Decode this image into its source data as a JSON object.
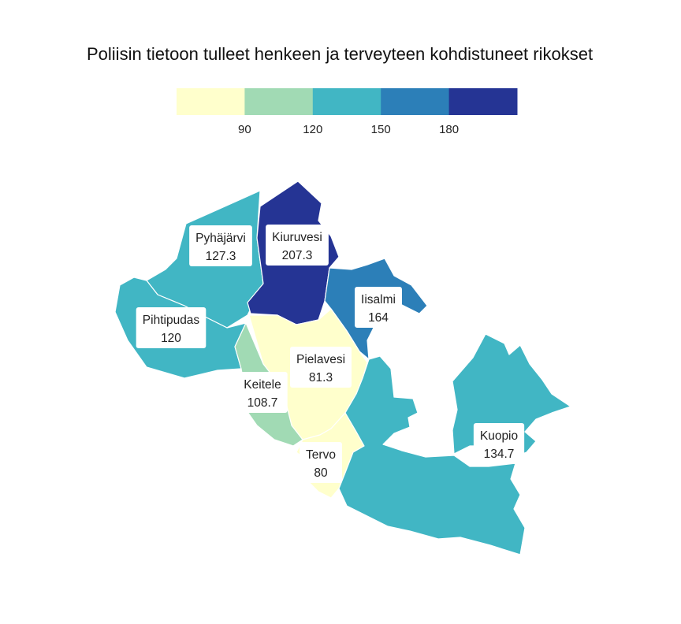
{
  "title": "Poliisin tietoon tulleet henkeen ja terveyteen kohdistuneet rikokset",
  "legend": {
    "breaks": [
      90,
      120,
      150,
      180
    ],
    "tick_labels": [
      "90",
      "120",
      "150",
      "180"
    ],
    "colors": [
      "#ffffcc",
      "#a1dab4",
      "#41b6c4",
      "#2c7fb8",
      "#253494"
    ]
  },
  "chart_data": {
    "type": "choropleth",
    "title": "Poliisin tietoon tulleet henkeen ja terveyteen kohdistuneet rikokset",
    "regions": [
      {
        "name": "Pyhäjärvi",
        "value": 127.3,
        "label": "127.3"
      },
      {
        "name": "Kiuruvesi",
        "value": 207.3,
        "label": "207.3"
      },
      {
        "name": "Iisalmi",
        "value": 164,
        "label": "164"
      },
      {
        "name": "Pihtipudas",
        "value": 120,
        "label": "120"
      },
      {
        "name": "Pielavesi",
        "value": 81.3,
        "label": "81.3"
      },
      {
        "name": "Keitele",
        "value": 108.7,
        "label": "108.7"
      },
      {
        "name": "Tervo",
        "value": 80,
        "label": "80"
      },
      {
        "name": "Kuopio",
        "value": 134.7,
        "label": "134.7"
      }
    ]
  }
}
